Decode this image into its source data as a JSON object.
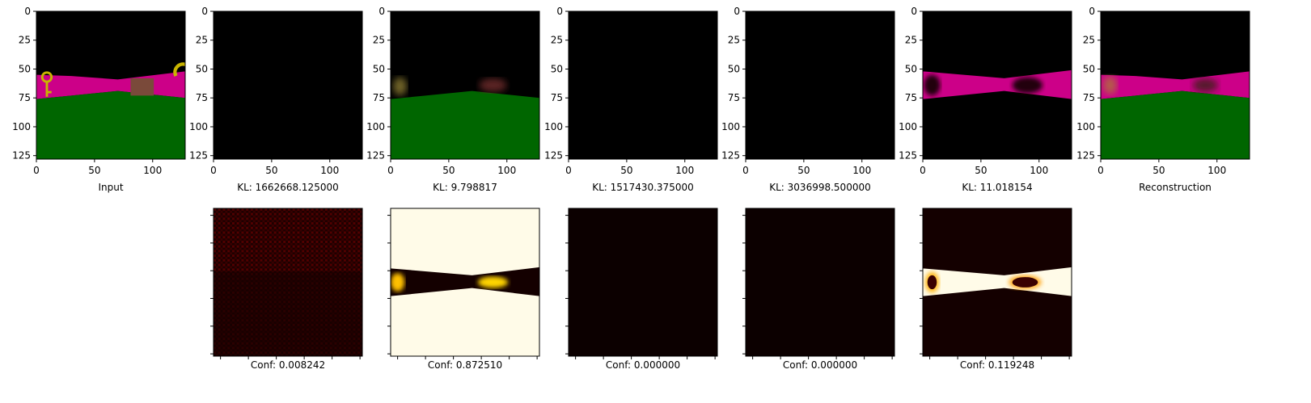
{
  "figure": {
    "top_row": [
      {
        "caption": "Input",
        "scene": "rgb"
      },
      {
        "caption": "KL: 1662668.125000",
        "scene": "black"
      },
      {
        "caption": "KL: 9.798817",
        "scene": "blurred"
      },
      {
        "caption": "KL: 1517430.375000",
        "scene": "black"
      },
      {
        "caption": "KL: 3036998.500000",
        "scene": "black"
      },
      {
        "caption": "KL: 11.018154",
        "scene": "band"
      },
      {
        "caption": "Reconstruction",
        "scene": "recon"
      }
    ],
    "bottom_row": [
      {
        "caption": "Conf: 0.008242",
        "map": "faint"
      },
      {
        "caption": "Conf: 0.872510",
        "map": "bright-bg"
      },
      {
        "caption": "Conf: 0.000000",
        "map": "dark"
      },
      {
        "caption": "Conf: 0.000000",
        "map": "dark"
      },
      {
        "caption": "Conf: 0.119248",
        "map": "bright-band"
      }
    ],
    "colors": {
      "background": "#000000",
      "floor": "#006600",
      "wall": "#cc0088",
      "key": "#c8b400",
      "box": "#7a4a3a",
      "heat_dark": "#0c0000",
      "heat_bright": "#fffbe8"
    }
  },
  "chart_data": {
    "type": "image-grid",
    "image_size": 128,
    "xlim": [
      0,
      128
    ],
    "ylim": [
      128,
      0
    ],
    "x_ticks": [
      0,
      50,
      100
    ],
    "y_ticks": [
      0,
      25,
      50,
      75,
      100,
      125
    ],
    "x_tick_labels": [
      "0",
      "50",
      "100"
    ],
    "y_tick_labels": [
      "0",
      "25",
      "50",
      "75",
      "100",
      "125"
    ],
    "kl": [
      1662668.125,
      9.798817,
      1517430.375,
      3036998.5,
      11.018154
    ],
    "conf": [
      0.008242,
      0.87251,
      0.0,
      0.0,
      0.119248
    ]
  }
}
